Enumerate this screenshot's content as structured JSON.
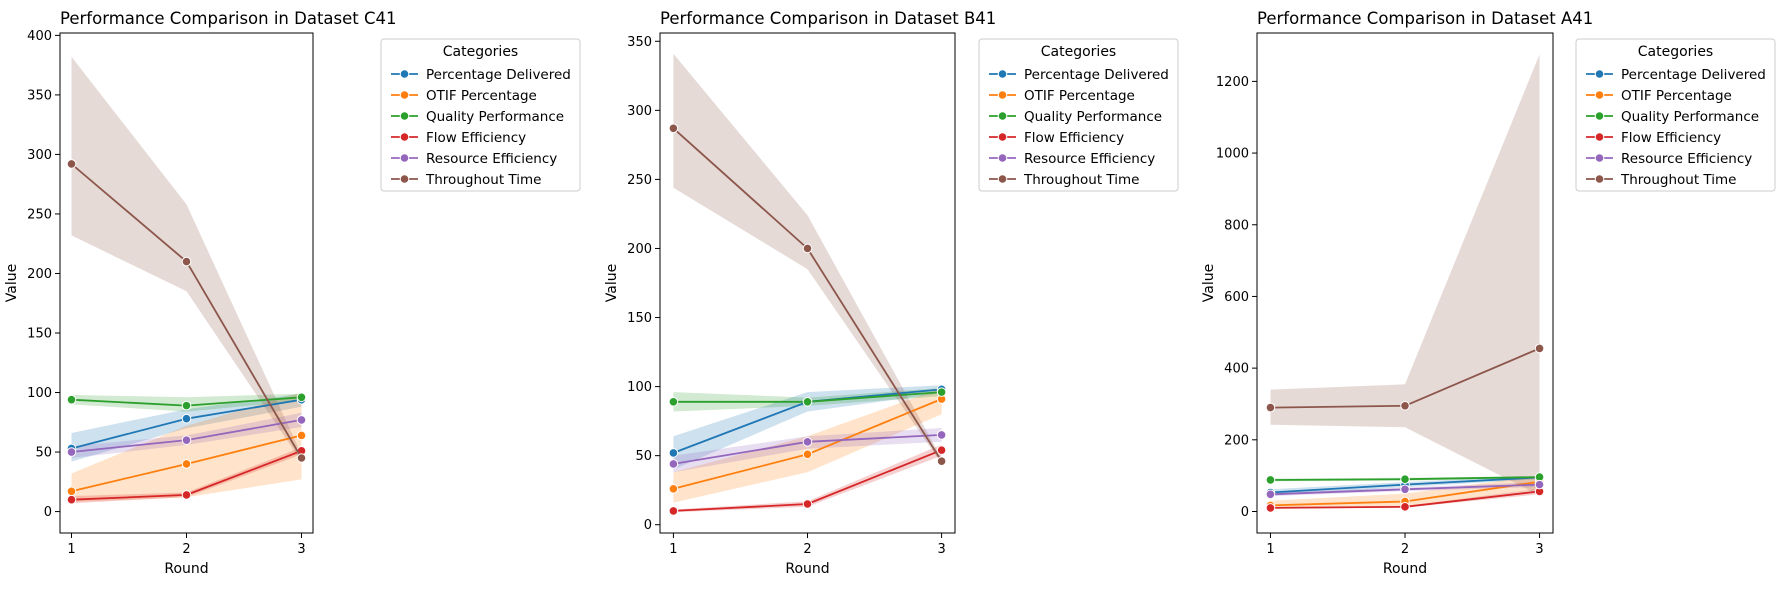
{
  "chart_data": [
    {
      "type": "line",
      "title": "Performance Comparison in Dataset C41",
      "xlabel": "Round",
      "ylabel": "Value",
      "x": [
        1,
        2,
        3
      ],
      "xlim": [
        0.9,
        3.1
      ],
      "ylim": [
        -18,
        402
      ],
      "yticks": [
        0,
        50,
        100,
        150,
        200,
        250,
        300,
        350,
        400
      ],
      "legend": {
        "title": "Categories",
        "placement": "outside-upper-right"
      },
      "series": [
        {
          "name": "Percentage Delivered",
          "color": "#1f77b4",
          "values": [
            53,
            78,
            94
          ],
          "lower": [
            42,
            70,
            88
          ],
          "upper": [
            66,
            86,
            99
          ]
        },
        {
          "name": "OTIF Percentage",
          "color": "#ff7f0e",
          "values": [
            17,
            40,
            64
          ],
          "lower": [
            8,
            12,
            27
          ],
          "upper": [
            32,
            72,
            100
          ]
        },
        {
          "name": "Quality Performance",
          "color": "#2ca02c",
          "values": [
            94,
            89,
            96
          ],
          "lower": [
            90,
            84,
            93
          ],
          "upper": [
            98,
            96,
            99
          ]
        },
        {
          "name": "Flow Efficiency",
          "color": "#d62728",
          "values": [
            10,
            14,
            51
          ],
          "lower": [
            7,
            12,
            48
          ],
          "upper": [
            13,
            16,
            54
          ]
        },
        {
          "name": "Resource Efficiency",
          "color": "#9467bd",
          "values": [
            50,
            60,
            77
          ],
          "lower": [
            45,
            56,
            71
          ],
          "upper": [
            55,
            64,
            83
          ]
        },
        {
          "name": "Throughout Time",
          "color": "#8c564b",
          "values": [
            292,
            210,
            45
          ],
          "lower": [
            232,
            185,
            42
          ],
          "upper": [
            382,
            258,
            48
          ]
        }
      ]
    },
    {
      "type": "line",
      "title": "Performance Comparison in Dataset B41",
      "xlabel": "Round",
      "ylabel": "Value",
      "x": [
        1,
        2,
        3
      ],
      "xlim": [
        0.9,
        3.1
      ],
      "ylim": [
        -6,
        356
      ],
      "yticks": [
        0,
        50,
        100,
        150,
        200,
        250,
        300,
        350
      ],
      "legend": {
        "title": "Categories",
        "placement": "outside-upper-right"
      },
      "series": [
        {
          "name": "Percentage Delivered",
          "color": "#1f77b4",
          "values": [
            52,
            89,
            98
          ],
          "lower": [
            40,
            82,
            95
          ],
          "upper": [
            64,
            96,
            101
          ]
        },
        {
          "name": "OTIF Percentage",
          "color": "#ff7f0e",
          "values": [
            26,
            51,
            91
          ],
          "lower": [
            16,
            38,
            80
          ],
          "upper": [
            38,
            64,
            99
          ]
        },
        {
          "name": "Quality Performance",
          "color": "#2ca02c",
          "values": [
            89,
            89,
            96
          ],
          "lower": [
            82,
            86,
            93
          ],
          "upper": [
            96,
            92,
            99
          ]
        },
        {
          "name": "Flow Efficiency",
          "color": "#d62728",
          "values": [
            10,
            15,
            54
          ],
          "lower": [
            9,
            13,
            50
          ],
          "upper": [
            11,
            17,
            58
          ]
        },
        {
          "name": "Resource Efficiency",
          "color": "#9467bd",
          "values": [
            44,
            60,
            65
          ],
          "lower": [
            38,
            55,
            60
          ],
          "upper": [
            50,
            64,
            70
          ]
        },
        {
          "name": "Throughout Time",
          "color": "#8c564b",
          "values": [
            287,
            200,
            46
          ],
          "lower": [
            244,
            185,
            44
          ],
          "upper": [
            341,
            224,
            48
          ]
        }
      ]
    },
    {
      "type": "line",
      "title": "Performance Comparison in Dataset A41",
      "xlabel": "Round",
      "ylabel": "Value",
      "x": [
        1,
        2,
        3
      ],
      "xlim": [
        0.9,
        3.1
      ],
      "ylim": [
        -60,
        1335
      ],
      "yticks": [
        0,
        200,
        400,
        600,
        800,
        1000,
        1200
      ],
      "legend": {
        "title": "Categories",
        "placement": "outside-upper-right"
      },
      "series": [
        {
          "name": "Percentage Delivered",
          "color": "#1f77b4",
          "values": [
            53,
            75,
            95
          ],
          "lower": [
            44,
            68,
            90
          ],
          "upper": [
            62,
            82,
            100
          ]
        },
        {
          "name": "OTIF Percentage",
          "color": "#ff7f0e",
          "values": [
            17,
            28,
            83
          ],
          "lower": [
            8,
            12,
            62
          ],
          "upper": [
            30,
            50,
            100
          ]
        },
        {
          "name": "Quality Performance",
          "color": "#2ca02c",
          "values": [
            88,
            90,
            96
          ],
          "lower": [
            84,
            86,
            93
          ],
          "upper": [
            92,
            94,
            99
          ]
        },
        {
          "name": "Flow Efficiency",
          "color": "#d62728",
          "values": [
            10,
            13,
            56
          ],
          "lower": [
            8,
            11,
            48
          ],
          "upper": [
            12,
            15,
            64
          ]
        },
        {
          "name": "Resource Efficiency",
          "color": "#9467bd",
          "values": [
            48,
            62,
            75
          ],
          "lower": [
            43,
            57,
            68
          ],
          "upper": [
            53,
            67,
            82
          ]
        },
        {
          "name": "Throughout Time",
          "color": "#8c564b",
          "values": [
            290,
            295,
            455
          ],
          "lower": [
            242,
            235,
            45
          ],
          "upper": [
            340,
            355,
            1275
          ]
        }
      ]
    }
  ]
}
